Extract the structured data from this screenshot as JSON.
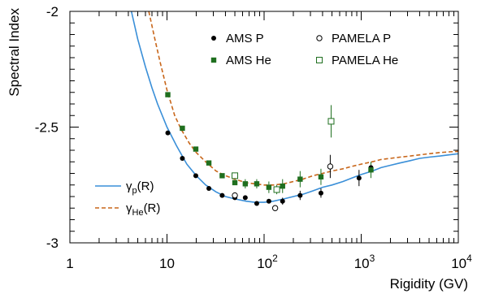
{
  "chart_data": {
    "type": "scatter",
    "title": "",
    "xlabel": "Rigidity (GV)",
    "ylabel": "Spectral Index",
    "xscale": "log",
    "xlim": [
      1,
      10000
    ],
    "ylim": [
      -3.0,
      -2.0
    ],
    "x_tick_labels": [
      {
        "value": 1,
        "text": "1"
      },
      {
        "value": 10,
        "text": "10"
      },
      {
        "value": 100,
        "base": "10",
        "exp": "2"
      },
      {
        "value": 1000,
        "base": "10",
        "exp": "3"
      },
      {
        "value": 10000,
        "base": "10",
        "exp": "4"
      }
    ],
    "y_ticks": [
      -3.0,
      -2.5,
      -2.0
    ],
    "y_tick_labels": [
      "-3",
      "-2.5",
      "-2"
    ],
    "grid": false,
    "legend": [
      {
        "name": "AMS P",
        "marker": "filled-circle",
        "color": "#000000",
        "position": "top-center"
      },
      {
        "name": "PAMELA P",
        "marker": "open-circle",
        "color": "#000000",
        "position": "top-right"
      },
      {
        "name": "AMS He",
        "marker": "filled-square",
        "color": "#1f6f1f",
        "position": "top-center"
      },
      {
        "name": "PAMELA He",
        "marker": "open-square",
        "color": "#1f6f1f",
        "position": "top-right"
      }
    ],
    "line_legend": [
      {
        "symbol": "γ",
        "sub": "p",
        "suffix": "(R)",
        "color": "#3a8fd8",
        "style": "solid"
      },
      {
        "symbol": "γ",
        "sub": "He",
        "suffix": "(R)",
        "color": "#c8661a",
        "style": "dashed"
      }
    ],
    "series": [
      {
        "name": "AMS P",
        "marker": "filled-circle",
        "color": "#000000",
        "points": [
          {
            "x": 10.2,
            "y": -2.525,
            "err": 0.0
          },
          {
            "x": 14.4,
            "y": -2.635,
            "err": 0.0
          },
          {
            "x": 19.8,
            "y": -2.71,
            "err": 0.0
          },
          {
            "x": 27.0,
            "y": -2.765,
            "err": 0.0
          },
          {
            "x": 37.0,
            "y": -2.795,
            "err": 0.0
          },
          {
            "x": 50.0,
            "y": -2.805,
            "err": 0.0
          },
          {
            "x": 64.0,
            "y": -2.805,
            "err": 0.0
          },
          {
            "x": 84.0,
            "y": -2.83,
            "err": 0.0
          },
          {
            "x": 112.0,
            "y": -2.82,
            "err": 0.0
          },
          {
            "x": 155.0,
            "y": -2.82,
            "err": 0.015
          },
          {
            "x": 235.0,
            "y": -2.795,
            "err": 0.02
          },
          {
            "x": 385.0,
            "y": -2.785,
            "err": 0.02
          },
          {
            "x": 950.0,
            "y": -2.72,
            "err": 0.035
          },
          {
            "x": 1260.0,
            "y": -2.675,
            "err": 0.0
          }
        ]
      },
      {
        "name": "AMS He",
        "marker": "filled-square",
        "color": "#1f6f1f",
        "points": [
          {
            "x": 10.2,
            "y": -2.36,
            "err": 0.0
          },
          {
            "x": 14.4,
            "y": -2.505,
            "err": 0.0
          },
          {
            "x": 19.8,
            "y": -2.595,
            "err": 0.0
          },
          {
            "x": 27.0,
            "y": -2.655,
            "err": 0.0
          },
          {
            "x": 37.0,
            "y": -2.71,
            "err": 0.0
          },
          {
            "x": 50.0,
            "y": -2.74,
            "err": 0.0
          },
          {
            "x": 64.0,
            "y": -2.745,
            "err": 0.02
          },
          {
            "x": 84.0,
            "y": -2.745,
            "err": 0.02
          },
          {
            "x": 112.0,
            "y": -2.76,
            "err": 0.025
          },
          {
            "x": 155.0,
            "y": -2.755,
            "err": 0.03
          },
          {
            "x": 235.0,
            "y": -2.725,
            "err": 0.035
          },
          {
            "x": 385.0,
            "y": -2.715,
            "err": 0.035
          },
          {
            "x": 1260.0,
            "y": -2.685,
            "err": 0.035
          }
        ]
      },
      {
        "name": "PAMELA P",
        "marker": "open-circle",
        "color": "#000000",
        "points": [
          {
            "x": 50.0,
            "y": -2.795,
            "err": 0.0
          },
          {
            "x": 130.0,
            "y": -2.85,
            "err": 0.0
          },
          {
            "x": 480.0,
            "y": -2.67,
            "err": 0.05
          }
        ]
      },
      {
        "name": "PAMELA He",
        "marker": "open-square",
        "color": "#1f6f1f",
        "points": [
          {
            "x": 50.0,
            "y": -2.71,
            "err": 0.0
          },
          {
            "x": 135.0,
            "y": -2.77,
            "err": 0.02
          },
          {
            "x": 490.0,
            "y": -2.475,
            "err": 0.07
          }
        ]
      }
    ],
    "curves": [
      {
        "name": "γp(R)",
        "color": "#3a8fd8",
        "style": "solid",
        "points": [
          {
            "x": 4.3,
            "y": -2.0
          },
          {
            "x": 5.0,
            "y": -2.12
          },
          {
            "x": 6.0,
            "y": -2.24
          },
          {
            "x": 7.0,
            "y": -2.33
          },
          {
            "x": 8.0,
            "y": -2.4
          },
          {
            "x": 10.0,
            "y": -2.5
          },
          {
            "x": 12.5,
            "y": -2.58
          },
          {
            "x": 16.0,
            "y": -2.66
          },
          {
            "x": 20.0,
            "y": -2.71
          },
          {
            "x": 25.0,
            "y": -2.75
          },
          {
            "x": 32.0,
            "y": -2.78
          },
          {
            "x": 40.0,
            "y": -2.8
          },
          {
            "x": 50.0,
            "y": -2.81
          },
          {
            "x": 65.0,
            "y": -2.82
          },
          {
            "x": 80.0,
            "y": -2.825
          },
          {
            "x": 100.0,
            "y": -2.825
          },
          {
            "x": 125.0,
            "y": -2.82
          },
          {
            "x": 160.0,
            "y": -2.81
          },
          {
            "x": 200.0,
            "y": -2.8
          },
          {
            "x": 250.0,
            "y": -2.79
          },
          {
            "x": 320.0,
            "y": -2.775
          },
          {
            "x": 400.0,
            "y": -2.76
          },
          {
            "x": 500.0,
            "y": -2.75
          },
          {
            "x": 650.0,
            "y": -2.735
          },
          {
            "x": 800.0,
            "y": -2.72
          },
          {
            "x": 1000.0,
            "y": -2.705
          },
          {
            "x": 1300.0,
            "y": -2.69
          },
          {
            "x": 1600.0,
            "y": -2.675
          },
          {
            "x": 2000.0,
            "y": -2.665
          },
          {
            "x": 2500.0,
            "y": -2.655
          },
          {
            "x": 3200.0,
            "y": -2.645
          },
          {
            "x": 4000.0,
            "y": -2.635
          },
          {
            "x": 5000.0,
            "y": -2.63
          },
          {
            "x": 6500.0,
            "y": -2.625
          },
          {
            "x": 8000.0,
            "y": -2.62
          },
          {
            "x": 10000.0,
            "y": -2.615
          }
        ]
      },
      {
        "name": "γHe(R)",
        "color": "#c8661a",
        "style": "dashed",
        "points": [
          {
            "x": 6.5,
            "y": -2.0
          },
          {
            "x": 7.5,
            "y": -2.12
          },
          {
            "x": 8.5,
            "y": -2.22
          },
          {
            "x": 10.0,
            "y": -2.34
          },
          {
            "x": 12.0,
            "y": -2.45
          },
          {
            "x": 14.0,
            "y": -2.51
          },
          {
            "x": 17.0,
            "y": -2.57
          },
          {
            "x": 20.0,
            "y": -2.61
          },
          {
            "x": 25.0,
            "y": -2.65
          },
          {
            "x": 32.0,
            "y": -2.69
          },
          {
            "x": 40.0,
            "y": -2.71
          },
          {
            "x": 50.0,
            "y": -2.725
          },
          {
            "x": 65.0,
            "y": -2.74
          },
          {
            "x": 80.0,
            "y": -2.745
          },
          {
            "x": 100.0,
            "y": -2.75
          },
          {
            "x": 125.0,
            "y": -2.75
          },
          {
            "x": 160.0,
            "y": -2.745
          },
          {
            "x": 200.0,
            "y": -2.735
          },
          {
            "x": 250.0,
            "y": -2.725
          },
          {
            "x": 320.0,
            "y": -2.71
          },
          {
            "x": 400.0,
            "y": -2.7
          },
          {
            "x": 500.0,
            "y": -2.69
          },
          {
            "x": 650.0,
            "y": -2.68
          },
          {
            "x": 800.0,
            "y": -2.67
          },
          {
            "x": 1000.0,
            "y": -2.66
          },
          {
            "x": 1300.0,
            "y": -2.65
          },
          {
            "x": 1600.0,
            "y": -2.64
          },
          {
            "x": 2000.0,
            "y": -2.635
          },
          {
            "x": 2500.0,
            "y": -2.63
          },
          {
            "x": 3200.0,
            "y": -2.625
          },
          {
            "x": 4000.0,
            "y": -2.62
          },
          {
            "x": 5000.0,
            "y": -2.615
          },
          {
            "x": 6500.0,
            "y": -2.61
          },
          {
            "x": 8000.0,
            "y": -2.607
          },
          {
            "x": 10000.0,
            "y": -2.605
          }
        ]
      }
    ]
  }
}
